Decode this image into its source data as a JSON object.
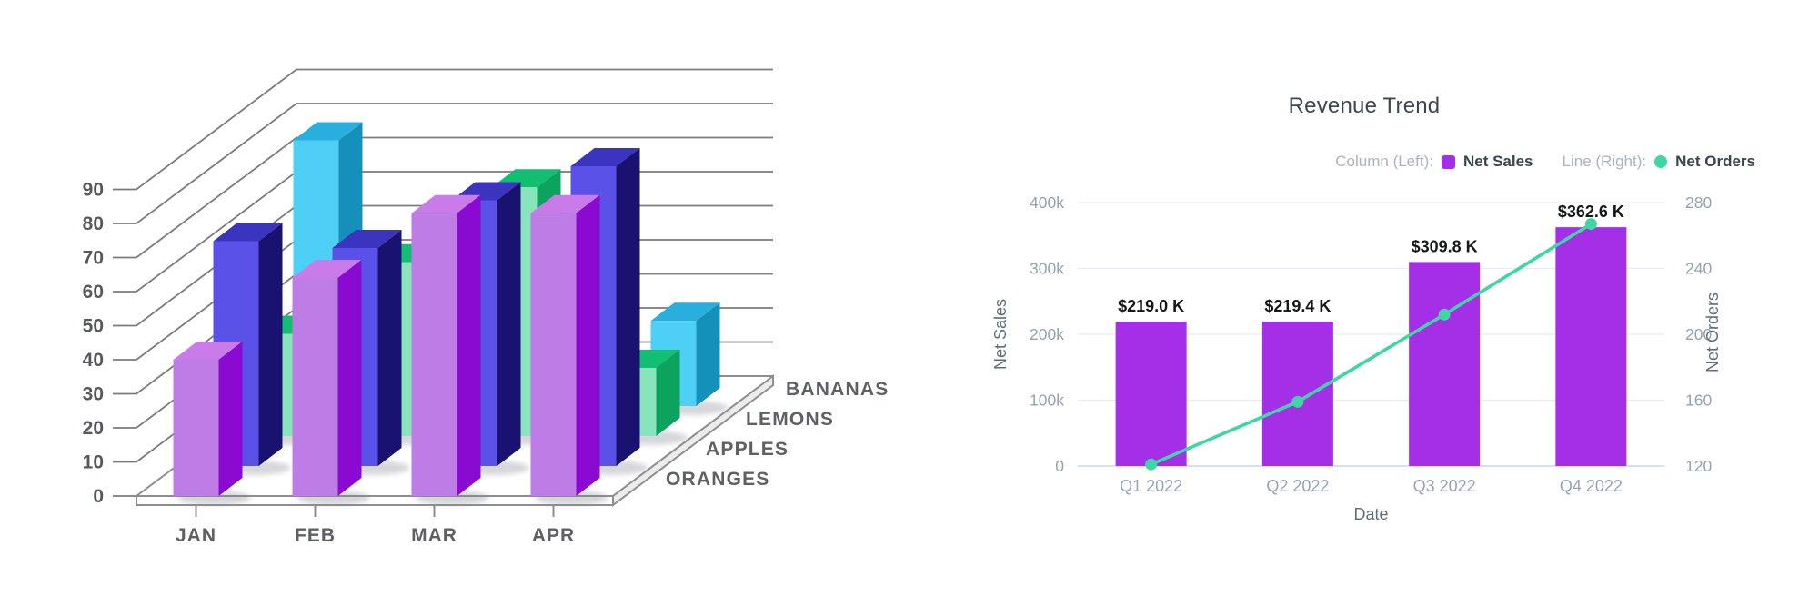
{
  "chart_data": [
    {
      "id": "fruit-3d-column-chart",
      "type": "bar",
      "style": "3d-column",
      "title": "",
      "categories": [
        "JAN",
        "FEB",
        "MAR",
        "APR"
      ],
      "series": [
        {
          "name": "ORANGES",
          "values": [
            40,
            64,
            83,
            83
          ],
          "color_front": "#BE7DE6",
          "color_top": "#C97BEA",
          "color_side": "#8A0AD2"
        },
        {
          "name": "APPLES",
          "values": [
            66,
            64,
            78,
            88
          ],
          "color_front": "#5A52E8",
          "color_top": "#3B34BE",
          "color_side": "#191270"
        },
        {
          "name": "LEMONS",
          "values": [
            30,
            51,
            73,
            20
          ],
          "color_front": "#87E4BB",
          "color_top": "#12BE72",
          "color_side": "#0CA35F"
        },
        {
          "name": "BANANAS",
          "values": [
            78,
            30,
            40,
            25
          ],
          "color_front": "#4ECFF5",
          "color_top": "#28AFDD",
          "color_side": "#1490BA"
        }
      ],
      "ylim": [
        0,
        90
      ],
      "ytick_step": 10,
      "ytick_labels": [
        "0",
        "10",
        "20",
        "30",
        "40",
        "50",
        "60",
        "70",
        "80",
        "90"
      ],
      "grid": true,
      "depth_axis_labels_front_to_back": [
        "ORANGES",
        "APPLES",
        "LEMONS",
        "BANANAS"
      ],
      "gridline_color": "#7b7b7b",
      "text_color": "#5d6166"
    },
    {
      "id": "revenue-trend-chart",
      "type": "bar+line-dual-axis",
      "title": "Revenue Trend",
      "xlabel": "Date",
      "x": [
        "Q1 2022",
        "Q2 2022",
        "Q3 2022",
        "Q4 2022"
      ],
      "legend": [
        {
          "prefix": "Column (Left):",
          "label": "Net Sales",
          "marker": "square",
          "color": "#A52FE6"
        },
        {
          "prefix": "Line (Right):",
          "label": "Net Orders",
          "marker": "dot",
          "color": "#3ED6A2"
        }
      ],
      "left_axis": {
        "name": "Net Sales",
        "tick_labels": [
          "400k",
          "300k",
          "200k",
          "100k",
          "0"
        ],
        "min": 0,
        "max": 400000
      },
      "right_axis": {
        "name": "Net Orders",
        "tick_labels": [
          "280",
          "240",
          "200",
          "160",
          "120"
        ],
        "min": 120,
        "max": 280
      },
      "bars": {
        "name": "Net Sales",
        "values_thousands": [
          219.0,
          219.4,
          309.8,
          362.6
        ],
        "data_labels": [
          "$219.0 K",
          "$219.4 K",
          "$309.8 K",
          "$362.6 K"
        ],
        "color": "#A52FE6"
      },
      "line": {
        "name": "Net Orders",
        "values": [
          121,
          159,
          212,
          267
        ],
        "color": "#3ED6A2"
      },
      "grid": true,
      "gridline_color": "#e8ebf1",
      "axis_line_color": "#ccd5e5",
      "tick_text_color": "#94a1b3",
      "axis_name_color": "#5e6b7b",
      "data_label_color": "#14171c"
    }
  ]
}
